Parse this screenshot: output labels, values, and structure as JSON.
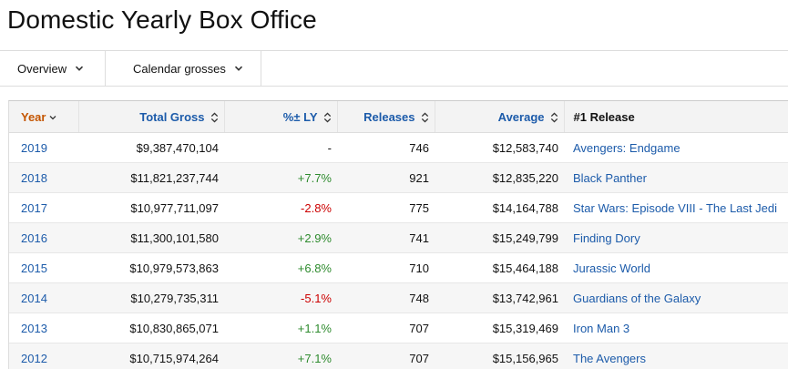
{
  "page": {
    "title": "Domestic Yearly Box Office"
  },
  "toolbar": {
    "view_select": {
      "label": "Overview"
    },
    "grosses_select": {
      "label": "Calendar grosses"
    }
  },
  "table": {
    "columns": {
      "year": "Year",
      "total_gross": "Total Gross",
      "pct_ly": "%± LY",
      "releases": "Releases",
      "average": "Average",
      "top_release": "#1 Release"
    },
    "sort": {
      "column": "year",
      "direction": "desc"
    },
    "rows": [
      {
        "year": "2019",
        "total_gross": "$9,387,470,104",
        "pct_ly": "-",
        "releases": "746",
        "average": "$12,583,740",
        "top_release": "Avengers: Endgame"
      },
      {
        "year": "2018",
        "total_gross": "$11,821,237,744",
        "pct_ly": "+7.7%",
        "releases": "921",
        "average": "$12,835,220",
        "top_release": "Black Panther"
      },
      {
        "year": "2017",
        "total_gross": "$10,977,711,097",
        "pct_ly": "-2.8%",
        "releases": "775",
        "average": "$14,164,788",
        "top_release": "Star Wars: Episode VIII - The Last Jedi"
      },
      {
        "year": "2016",
        "total_gross": "$11,300,101,580",
        "pct_ly": "+2.9%",
        "releases": "741",
        "average": "$15,249,799",
        "top_release": "Finding Dory"
      },
      {
        "year": "2015",
        "total_gross": "$10,979,573,863",
        "pct_ly": "+6.8%",
        "releases": "710",
        "average": "$15,464,188",
        "top_release": "Jurassic World"
      },
      {
        "year": "2014",
        "total_gross": "$10,279,735,311",
        "pct_ly": "-5.1%",
        "releases": "748",
        "average": "$13,742,961",
        "top_release": "Guardians of the Galaxy"
      },
      {
        "year": "2013",
        "total_gross": "$10,830,865,071",
        "pct_ly": "+1.1%",
        "releases": "707",
        "average": "$15,319,469",
        "top_release": "Iron Man 3"
      },
      {
        "year": "2012",
        "total_gross": "$10,715,974,264",
        "pct_ly": "+7.1%",
        "releases": "707",
        "average": "$15,156,965",
        "top_release": "The Avengers"
      }
    ]
  },
  "colors": {
    "link": "#1c5baa",
    "active_sort": "#c45500",
    "positive": "#2e8b2e",
    "negative": "#cc0000"
  }
}
